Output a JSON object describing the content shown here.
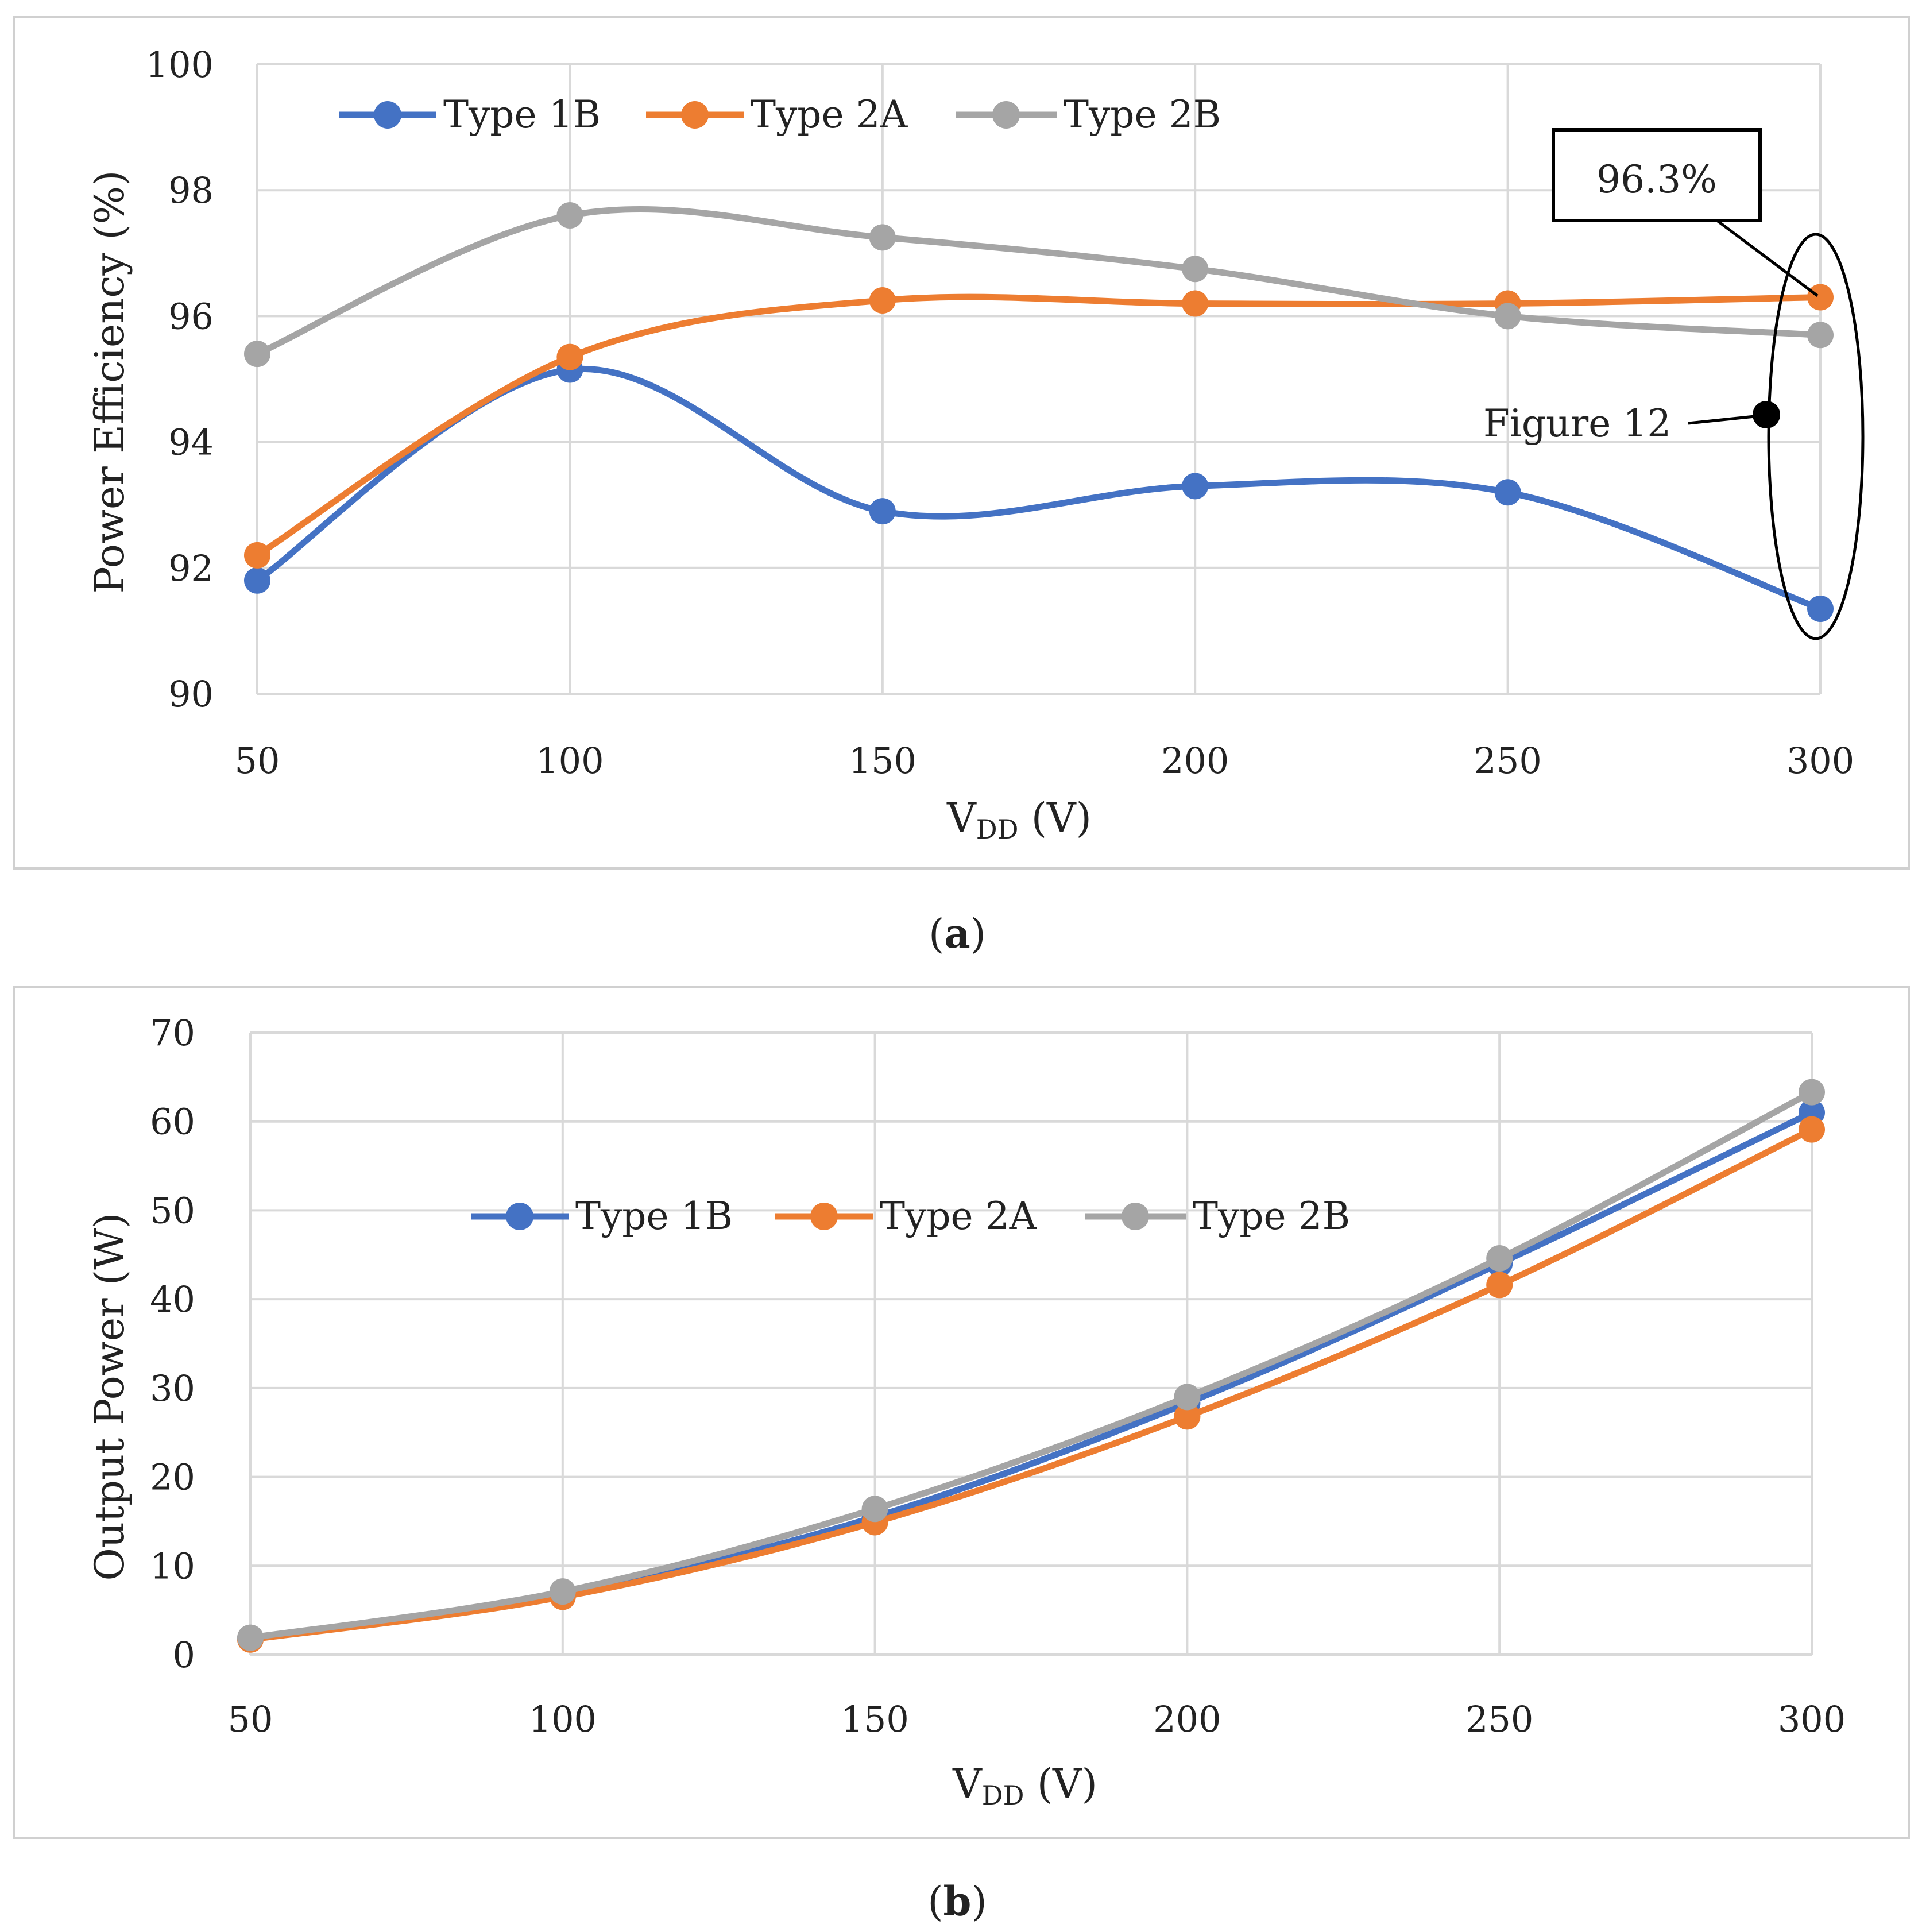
{
  "colors": {
    "type_1b": "#4472C4",
    "type_2a": "#ED7D31",
    "type_2b": "#A5A5A5",
    "grid": "#D9D9D9",
    "frame": "#D0D0D0"
  },
  "chart_data": [
    {
      "type": "line",
      "panel_label": "a",
      "categories": [
        50,
        100,
        150,
        200,
        250,
        300
      ],
      "series": [
        {
          "name": "Type 1B",
          "values": [
            91.8,
            95.15,
            92.9,
            93.3,
            93.2,
            91.35
          ]
        },
        {
          "name": "Type 2A",
          "values": [
            92.2,
            95.35,
            96.25,
            96.2,
            96.2,
            96.3
          ]
        },
        {
          "name": "Type 2B",
          "values": [
            95.4,
            97.6,
            97.25,
            96.75,
            96.0,
            95.7
          ]
        }
      ],
      "title": "",
      "xlabel_main": "V",
      "xlabel_sub": "DD",
      "xlabel_unit": " (V)",
      "ylabel": "Power Efficiency (%)",
      "ylim": [
        90,
        100
      ],
      "yticks": [
        90,
        92,
        94,
        96,
        98,
        100
      ],
      "grid": true,
      "legend_position": "top-left",
      "annotations": {
        "callout_text": "96.3%",
        "figure_ref_text": "Figure 12"
      }
    },
    {
      "type": "line",
      "panel_label": "b",
      "categories": [
        50,
        100,
        150,
        200,
        250,
        300
      ],
      "series": [
        {
          "name": "Type 1B",
          "values": [
            1.8,
            6.8,
            15.5,
            28.3,
            44.0,
            61.0
          ]
        },
        {
          "name": "Type 2A",
          "values": [
            1.7,
            6.5,
            14.9,
            26.8,
            41.6,
            59.1
          ]
        },
        {
          "name": "Type 2B",
          "values": [
            1.9,
            7.1,
            16.4,
            29.0,
            44.6,
            63.3
          ]
        }
      ],
      "title": "",
      "xlabel_main": "V",
      "xlabel_sub": "DD",
      "xlabel_unit": " (V)",
      "ylabel": "Output Power (W)",
      "ylim": [
        0,
        70
      ],
      "yticks": [
        0,
        10,
        20,
        30,
        40,
        50,
        60,
        70
      ],
      "grid": true,
      "legend_position": "center-left"
    }
  ]
}
